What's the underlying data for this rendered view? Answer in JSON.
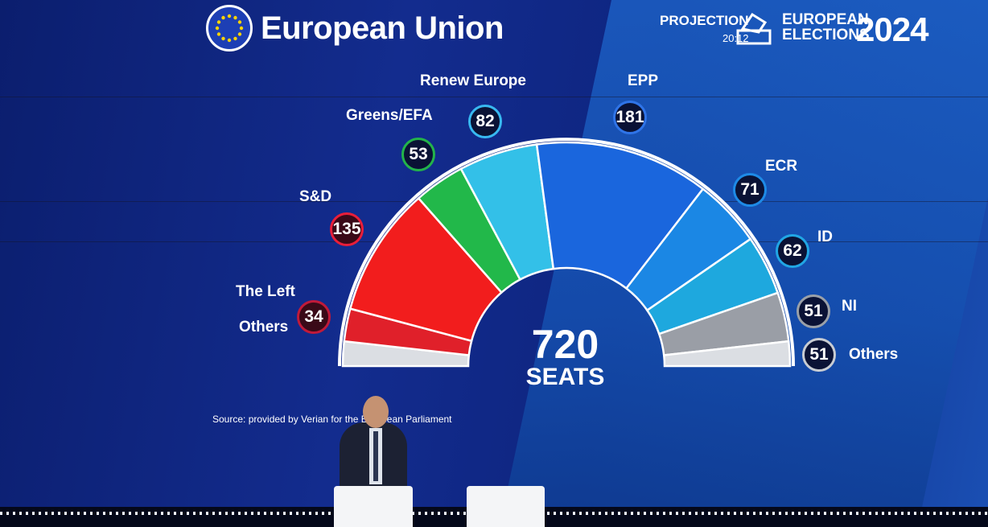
{
  "header": {
    "title": "European Union",
    "projection_label": "PROJECTION",
    "projection_time": "20:12",
    "elections_line1": "EUROPEAN",
    "elections_line2": "ELECTIONS",
    "year": "2024"
  },
  "source": "Source: provided by Verian for the European Parliament",
  "colors": {
    "left": "#e0202a",
    "sd": "#f21d1d",
    "greens": "#22b84a",
    "renew": "#33c0e8",
    "epp": "#1a66dd",
    "ecr": "#1b87e4",
    "id": "#1ea8de",
    "ni": "#9a9ea6",
    "others": "#dbdee3"
  },
  "chart_data": {
    "type": "pie",
    "subtype": "hemicycle",
    "total": 720,
    "total_label": "720",
    "total_unit": "SEATS",
    "series": [
      {
        "name": "The Left",
        "value": 34
      },
      {
        "name": "S&D",
        "value": 135
      },
      {
        "name": "Greens/EFA",
        "value": 53
      },
      {
        "name": "Renew Europe",
        "value": 82
      },
      {
        "name": "EPP",
        "value": 181
      },
      {
        "name": "ECR",
        "value": 71
      },
      {
        "name": "ID",
        "value": 62
      },
      {
        "name": "NI",
        "value": 51
      },
      {
        "name": "Others",
        "value": 51
      }
    ],
    "hemicycle_order": [
      "Others",
      "The Left",
      "S&D",
      "Greens/EFA",
      "Renew Europe",
      "EPP",
      "ECR",
      "ID",
      "NI",
      "Others"
    ],
    "labels": {
      "left": "The Left",
      "others_left": "Others",
      "sd": "S&D",
      "greens": "Greens/EFA",
      "renew": "Renew Europe",
      "epp": "EPP",
      "ecr": "ECR",
      "id": "ID",
      "ni": "NI",
      "others_right": "Others"
    },
    "badges": {
      "left": "34",
      "sd": "135",
      "greens": "53",
      "renew": "82",
      "epp": "181",
      "ecr": "71",
      "id": "62",
      "ni": "51",
      "others": "51"
    }
  }
}
